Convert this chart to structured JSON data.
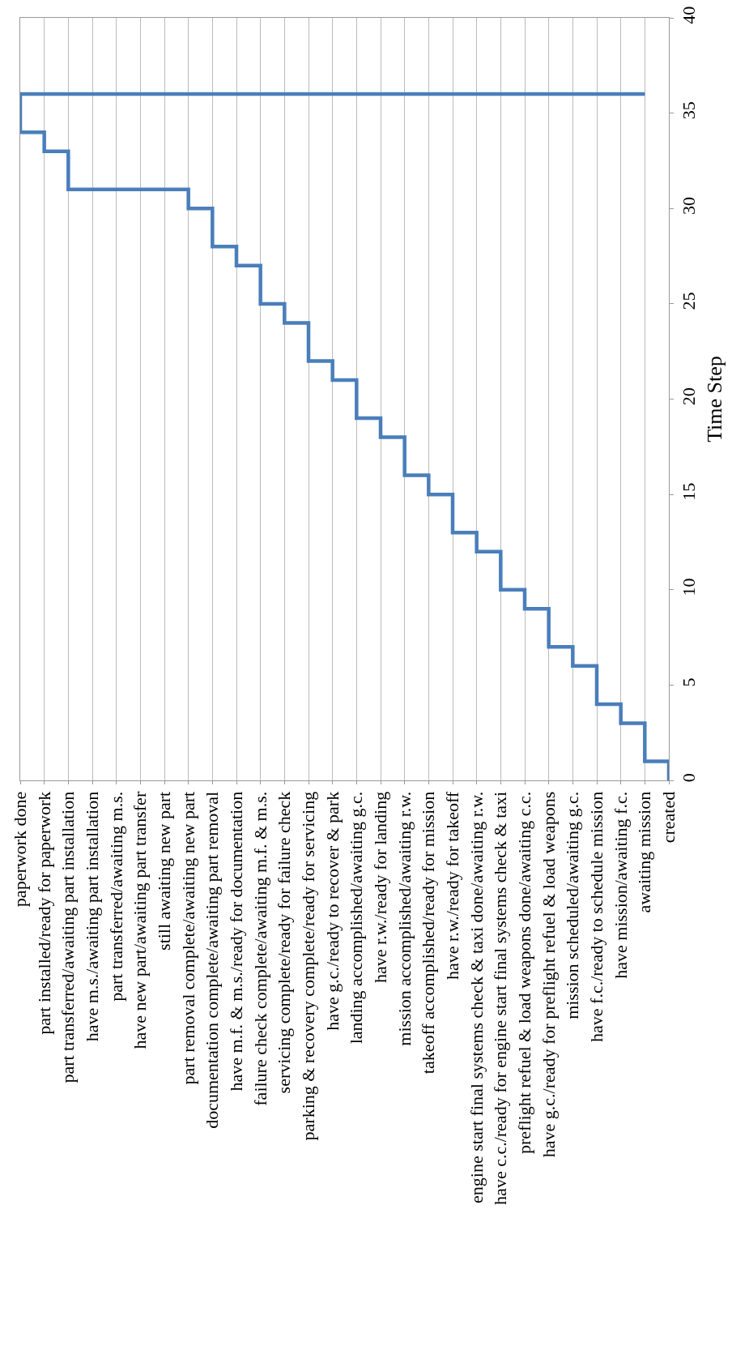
{
  "chart_data": {
    "type": "line",
    "ylabel": "Time Step",
    "categories": [
      "paperwork done",
      "part installed/ready for paperwork",
      "part transferred/awaiting part installation",
      "have m.s./awaiting part installation",
      "part transferred/awaiting m.s.",
      "have new part/awaiting part transfer",
      "still awaiting new part",
      "part removal complete/awaiting new part",
      "documentation complete/awaiting part removal",
      "have m.f. & m.s./ready for documentation",
      "failure check complete/awaiting m.f. & m.s.",
      "servicing complete/ready for failure check",
      "parking & recovery complete/ready for servicing",
      "have g.c./ready to recover & park",
      "landing accomplished/awaiting g.c.",
      "have r.w./ready for landing",
      "mission accomplished/awaiting r.w.",
      "takeoff accomplished/ready for mission",
      "have r.w./ready for takeoff",
      "engine start final systems check & taxi done/awaiting r.w.",
      "have c.c./ready for engine start final systems check & taxi",
      "preflight refuel & load weapons done/awaiting c.c.",
      "have g.c./ready for preflight refuel & load weapons",
      "mission scheduled/awaiting g.c.",
      "have f.c./ready to schedule mission",
      "have mission/awaiting f.c.",
      "awaiting mission",
      "created"
    ],
    "series": [
      {
        "color": "#4a7ebb",
        "x": [
          "created",
          "created",
          "awaiting mission",
          "awaiting mission",
          "have mission/awaiting f.c.",
          "have mission/awaiting f.c.",
          "have f.c./ready to schedule mission",
          "have f.c./ready to schedule mission",
          "mission scheduled/awaiting g.c.",
          "mission scheduled/awaiting g.c.",
          "have g.c./ready for preflight refuel & load weapons",
          "have g.c./ready for preflight refuel & load weapons",
          "preflight refuel & load weapons done/awaiting c.c.",
          "preflight refuel & load weapons done/awaiting c.c.",
          "have c.c./ready for engine start final systems check & taxi",
          "have c.c./ready for engine start final systems check & taxi",
          "engine start final systems check & taxi done/awaiting r.w.",
          "engine start final systems check & taxi done/awaiting r.w.",
          "have r.w./ready for takeoff",
          "have r.w./ready for takeoff",
          "takeoff accomplished/ready for mission",
          "takeoff accomplished/ready for mission",
          "mission accomplished/awaiting r.w.",
          "mission accomplished/awaiting r.w.",
          "have r.w./ready for landing",
          "have r.w./ready for landing",
          "landing accomplished/awaiting g.c.",
          "landing accomplished/awaiting g.c.",
          "have g.c./ready to recover & park",
          "have g.c./ready to recover & park",
          "parking & recovery complete/ready for servicing",
          "parking & recovery complete/ready for servicing",
          "servicing complete/ready for failure check",
          "servicing complete/ready for failure check",
          "failure check complete/awaiting m.f. & m.s.",
          "failure check complete/awaiting m.f. & m.s.",
          "have m.f. & m.s./ready for documentation",
          "have m.f. & m.s./ready for documentation",
          "documentation complete/awaiting part removal",
          "documentation complete/awaiting part removal",
          "part removal complete/awaiting new part",
          "part removal complete/awaiting new part",
          "part transferred/awaiting part installation",
          "part transferred/awaiting part installation",
          "part installed/ready for paperwork",
          "part installed/ready for paperwork",
          "paperwork done",
          "paperwork done",
          "awaiting mission"
        ],
        "values": [
          0,
          1,
          1,
          3,
          3,
          4,
          4,
          6,
          6,
          7,
          7,
          9,
          9,
          10,
          10,
          12,
          12,
          13,
          13,
          15,
          15,
          16,
          16,
          18,
          18,
          19,
          19,
          21,
          21,
          22,
          22,
          24,
          24,
          25,
          25,
          27,
          27,
          28,
          28,
          30,
          30,
          31,
          31,
          33,
          33,
          34,
          34,
          36,
          36
        ]
      }
    ],
    "ylim": [
      0,
      40
    ],
    "yticks": [
      0,
      5,
      10,
      15,
      20,
      25,
      30,
      35,
      40
    ],
    "grid": "x",
    "marker": "none",
    "line_style": "solid"
  }
}
